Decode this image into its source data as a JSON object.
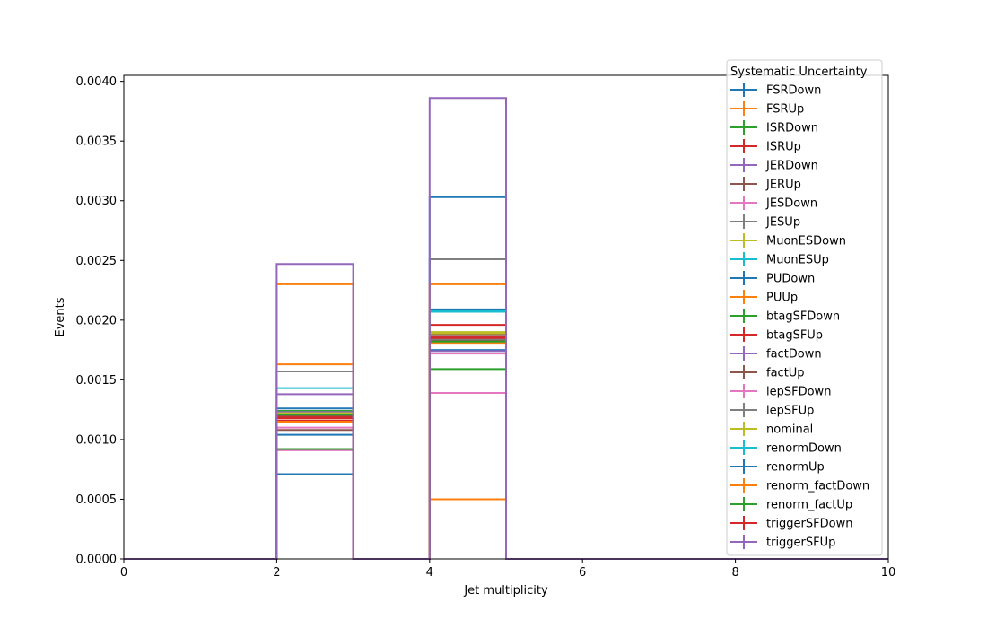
{
  "chart_data": {
    "type": "step-histogram",
    "xlabel": "Jet multiplicity",
    "ylabel": "Events",
    "xlim": [
      0,
      10
    ],
    "ylim": [
      0,
      0.00405
    ],
    "x_ticks": [
      0,
      2,
      4,
      6,
      8,
      10
    ],
    "x_tick_labels": [
      "0",
      "2",
      "4",
      "6",
      "8",
      "10"
    ],
    "y_ticks": [
      0,
      0.0005,
      0.001,
      0.0015,
      0.002,
      0.0025,
      0.003,
      0.0035,
      0.004
    ],
    "y_tick_labels": [
      "0.0000",
      "0.0005",
      "0.0010",
      "0.0015",
      "0.0020",
      "0.0025",
      "0.0030",
      "0.0035",
      "0.0040"
    ],
    "bin_edges": [
      0,
      1,
      2,
      3,
      4,
      5,
      6,
      7,
      8,
      9,
      10
    ],
    "grid": false,
    "legend": {
      "title": "Systematic Uncertainty",
      "placement": "top-right"
    },
    "series": [
      {
        "name": "FSRDown",
        "color": "#1f77b4",
        "values": [
          0,
          0,
          0.00126,
          0,
          0.00175,
          0,
          0,
          0,
          0,
          0
        ]
      },
      {
        "name": "FSRUp",
        "color": "#ff7f0e",
        "values": [
          0,
          0,
          0.00163,
          0,
          0.00181,
          0,
          0,
          0,
          0,
          0
        ]
      },
      {
        "name": "ISRDown",
        "color": "#2ca02c",
        "values": [
          0,
          0,
          0.00124,
          0,
          0.00183,
          0,
          0,
          0,
          0,
          0
        ]
      },
      {
        "name": "ISRUp",
        "color": "#d62728",
        "values": [
          0,
          0,
          0.00119,
          0,
          0.00186,
          0,
          0,
          0,
          0,
          0
        ]
      },
      {
        "name": "JERDown",
        "color": "#9467bd",
        "values": [
          0,
          0,
          0.00138,
          0,
          0.00174,
          0,
          0,
          0,
          0,
          0
        ]
      },
      {
        "name": "JERUp",
        "color": "#8c564b",
        "values": [
          0,
          0,
          0.00108,
          0,
          0.00188,
          0,
          0,
          0,
          0,
          0
        ]
      },
      {
        "name": "JESDown",
        "color": "#e377c2",
        "values": [
          0,
          0,
          0.00091,
          0,
          0.00139,
          0,
          0,
          0,
          0,
          0
        ]
      },
      {
        "name": "JESUp",
        "color": "#7f7f7f",
        "values": [
          0,
          0,
          0.00157,
          0,
          0.00251,
          0,
          0,
          0,
          0,
          0
        ]
      },
      {
        "name": "MuonESDown",
        "color": "#bcbd22",
        "values": [
          0,
          0,
          0.00122,
          0,
          0.0019,
          0,
          0,
          0,
          0,
          0
        ]
      },
      {
        "name": "MuonESUp",
        "color": "#17becf",
        "values": [
          0,
          0,
          0.00143,
          0,
          0.00207,
          0,
          0,
          0,
          0,
          0
        ]
      },
      {
        "name": "PUDown",
        "color": "#1f77b4",
        "values": [
          0,
          0,
          0.00071,
          0,
          0.00303,
          0,
          0,
          0,
          0,
          0
        ]
      },
      {
        "name": "PUUp",
        "color": "#ff7f0e",
        "values": [
          0,
          0,
          0.0023,
          0,
          0.0005,
          0,
          0,
          0,
          0,
          0
        ]
      },
      {
        "name": "btagSFDown",
        "color": "#2ca02c",
        "values": [
          0,
          0,
          0.00092,
          0,
          0.00159,
          0,
          0,
          0,
          0,
          0
        ]
      },
      {
        "name": "btagSFUp",
        "color": "#d62728",
        "values": [
          0,
          0,
          0.00116,
          0,
          0.00196,
          0,
          0,
          0,
          0,
          0
        ]
      },
      {
        "name": "factDown",
        "color": "#9467bd",
        "values": [
          0,
          0,
          0.00123,
          0,
          0.00185,
          0,
          0,
          0,
          0,
          0
        ]
      },
      {
        "name": "factUp",
        "color": "#8c564b",
        "values": [
          0,
          0,
          0.0012,
          0,
          0.00183,
          0,
          0,
          0,
          0,
          0
        ]
      },
      {
        "name": "lepSFDown",
        "color": "#e377c2",
        "values": [
          0,
          0,
          0.0011,
          0,
          0.00172,
          0,
          0,
          0,
          0,
          0
        ]
      },
      {
        "name": "lepSFUp",
        "color": "#7f7f7f",
        "values": [
          0,
          0,
          0.00122,
          0,
          0.00184,
          0,
          0,
          0,
          0,
          0
        ]
      },
      {
        "name": "nominal",
        "color": "#bcbd22",
        "values": [
          0,
          0,
          0.00122,
          0,
          0.00189,
          0,
          0,
          0,
          0,
          0
        ]
      },
      {
        "name": "renormDown",
        "color": "#17becf",
        "values": [
          0,
          0,
          0.00121,
          0,
          0.00208,
          0,
          0,
          0,
          0,
          0
        ]
      },
      {
        "name": "renormUp",
        "color": "#1f77b4",
        "values": [
          0,
          0,
          0.00104,
          0,
          0.00209,
          0,
          0,
          0,
          0,
          0
        ]
      },
      {
        "name": "renorm_factDown",
        "color": "#ff7f0e",
        "values": [
          0,
          0,
          0.00115,
          0,
          0.0023,
          0,
          0,
          0,
          0,
          0
        ]
      },
      {
        "name": "renorm_factUp",
        "color": "#2ca02c",
        "values": [
          0,
          0,
          0.00121,
          0,
          0.00182,
          0,
          0,
          0,
          0,
          0
        ]
      },
      {
        "name": "triggerSFDown",
        "color": "#d62728",
        "values": [
          0,
          0,
          0.00118,
          0,
          0.00185,
          0,
          0,
          0,
          0,
          0
        ]
      },
      {
        "name": "triggerSFUp",
        "color": "#9467bd",
        "values": [
          0,
          0,
          0.00247,
          0,
          0.00386,
          0,
          0,
          0,
          0,
          0
        ]
      }
    ]
  }
}
